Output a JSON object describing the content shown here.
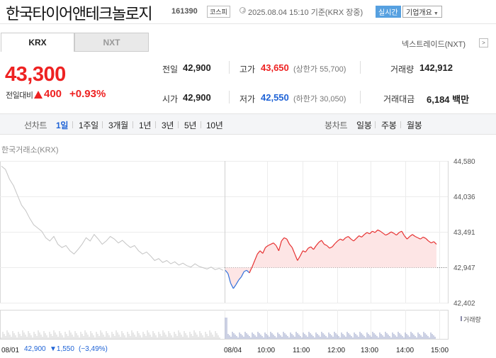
{
  "header": {
    "stock_name": "한국타이어앤테크놀로지",
    "stock_code": "161390",
    "market": "코스피",
    "datetime": "2025.08.04 15:10 기준(KRX 장중)",
    "realtime_label": "실시간",
    "company_info_label": "기업개요"
  },
  "tabs": {
    "krx": "KRX",
    "nxt": "NXT"
  },
  "nextrade_label": "넥스트레이드(NXT)",
  "price": {
    "current": "43,300",
    "change_label": "전일대비",
    "change": "400",
    "change_pct": "+0.93%"
  },
  "stats": {
    "prev_close_label": "전일",
    "prev_close": "42,900",
    "open_label": "시가",
    "open": "42,900",
    "high_label": "고가",
    "high": "43,650",
    "upper_limit": "(상한가 55,700)",
    "low_label": "저가",
    "low": "42,550",
    "lower_limit": "(하한가 30,050)",
    "volume_label": "거래량",
    "volume": "142,912",
    "amount_label": "거래대금",
    "amount": "6,184 백만"
  },
  "period": {
    "line_label": "선차트",
    "options": [
      "1일",
      "1주일",
      "3개월",
      "1년",
      "3년",
      "5년",
      "10년"
    ],
    "active": "1일",
    "candle_label": "봉차트",
    "candle_options": [
      "일봉",
      "주봉",
      "월봉"
    ]
  },
  "chart_source": "한국거래소(KRX)",
  "chart_data": {
    "type": "line",
    "y_ticks": [
      "44,580",
      "44,036",
      "43,491",
      "42,947",
      "42,402"
    ],
    "ylim": [
      42402,
      44580
    ],
    "reference": 42947,
    "x_labels": [
      "08/01",
      "08/04",
      "10:00",
      "11:00",
      "12:00",
      "13:00",
      "14:00",
      "15:00"
    ],
    "prev_day": {
      "label": "08/01",
      "close": "42,900",
      "change": "▼1,550",
      "change_pct": "(−3,49%)",
      "values": [
        44500,
        44450,
        44300,
        44200,
        44050,
        43900,
        43820,
        43700,
        43600,
        43550,
        43500,
        43400,
        43350,
        43420,
        43300,
        43250,
        43280,
        43200,
        43150,
        43220,
        43300,
        43400,
        43350,
        43450,
        43380,
        43300,
        43350,
        43420,
        43380,
        43320,
        43360,
        43300,
        43250,
        43280,
        43200,
        43150,
        43180,
        43120,
        43050,
        43080,
        43020,
        43050,
        43000,
        43030,
        42980,
        43010,
        42970,
        42950,
        43000,
        42960,
        42940,
        42920,
        42950,
        42910,
        42930,
        42900
      ]
    },
    "today": {
      "label": "08/04",
      "values": [
        42900,
        42850,
        42700,
        42620,
        42680,
        42750,
        42800,
        42880,
        42900,
        42860,
        42950,
        43050,
        43150,
        43200,
        43160,
        43250,
        43280,
        43300,
        43320,
        43280,
        43200,
        43350,
        43400,
        43380,
        43300,
        43250,
        43150,
        43050,
        43120,
        43200,
        43180,
        43240,
        43260,
        43220,
        43280,
        43330,
        43360,
        43300,
        43280,
        43240,
        43260,
        43310,
        43350,
        43380,
        43360,
        43400,
        43420,
        43380,
        43350,
        43390,
        43430,
        43410,
        43450,
        43480,
        43460,
        43500,
        43480,
        43520,
        43500,
        43470,
        43440,
        43460,
        43490,
        43470,
        43440,
        43480,
        43500,
        43430,
        43380,
        43420,
        43450,
        43420,
        43400,
        43380,
        43410,
        43390,
        43350,
        43320,
        43340,
        43300
      ]
    },
    "volume_label": "거래량"
  }
}
